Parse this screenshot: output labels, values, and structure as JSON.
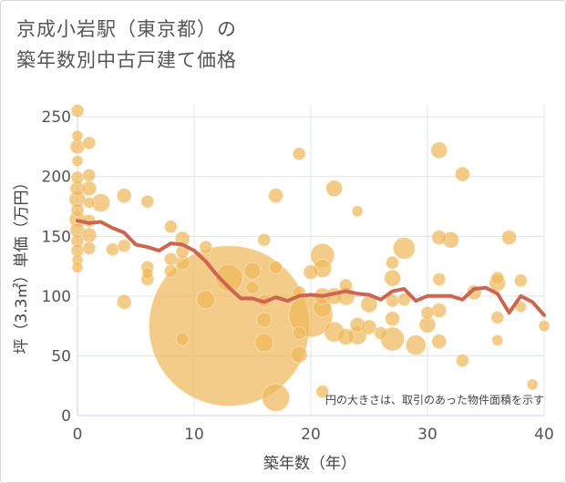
{
  "chart_data": {
    "type": "scatter",
    "title_line1": "京成小岩駅（東京都）の",
    "title_line2": "築年数別中古戸建て価格",
    "xlabel": "築年数（年）",
    "ylabel": "坪（3.3㎡）単価（万円）",
    "xlim": [
      0,
      40
    ],
    "ylim": [
      0,
      260
    ],
    "xticks": [
      0,
      10,
      20,
      30,
      40
    ],
    "yticks": [
      0,
      50,
      100,
      150,
      200,
      250
    ],
    "grid": true,
    "annotation": "円の大きさは、取引のあった物件面積を示す",
    "bubble_color": "#f0b85c",
    "line_color": "#cd6651",
    "points": [
      {
        "x": 0,
        "y": 255,
        "r": 7
      },
      {
        "x": 0,
        "y": 234,
        "r": 6
      },
      {
        "x": 0,
        "y": 225,
        "r": 8
      },
      {
        "x": 0,
        "y": 213,
        "r": 6
      },
      {
        "x": 0,
        "y": 199,
        "r": 7
      },
      {
        "x": 0,
        "y": 190,
        "r": 8
      },
      {
        "x": 0,
        "y": 181,
        "r": 9
      },
      {
        "x": 0,
        "y": 172,
        "r": 7
      },
      {
        "x": 0,
        "y": 164,
        "r": 9
      },
      {
        "x": 0,
        "y": 155,
        "r": 8
      },
      {
        "x": 0,
        "y": 146,
        "r": 7
      },
      {
        "x": 0,
        "y": 138,
        "r": 7
      },
      {
        "x": 0,
        "y": 130,
        "r": 6
      },
      {
        "x": 0,
        "y": 124,
        "r": 6
      },
      {
        "x": 1,
        "y": 228,
        "r": 7
      },
      {
        "x": 1,
        "y": 201,
        "r": 7
      },
      {
        "x": 1,
        "y": 190,
        "r": 8
      },
      {
        "x": 1,
        "y": 178,
        "r": 6
      },
      {
        "x": 1,
        "y": 163,
        "r": 7
      },
      {
        "x": 1,
        "y": 151,
        "r": 8
      },
      {
        "x": 1,
        "y": 140,
        "r": 7
      },
      {
        "x": 2,
        "y": 178,
        "r": 10
      },
      {
        "x": 3,
        "y": 139,
        "r": 7
      },
      {
        "x": 4,
        "y": 184,
        "r": 8
      },
      {
        "x": 4,
        "y": 142,
        "r": 7
      },
      {
        "x": 4,
        "y": 95,
        "r": 8
      },
      {
        "x": 6,
        "y": 179,
        "r": 7
      },
      {
        "x": 6,
        "y": 124,
        "r": 7
      },
      {
        "x": 6,
        "y": 119,
        "r": 6
      },
      {
        "x": 6,
        "y": 114,
        "r": 7
      },
      {
        "x": 8,
        "y": 158,
        "r": 7
      },
      {
        "x": 8,
        "y": 131,
        "r": 7
      },
      {
        "x": 8,
        "y": 121,
        "r": 7
      },
      {
        "x": 9,
        "y": 148,
        "r": 8
      },
      {
        "x": 9,
        "y": 137,
        "r": 7
      },
      {
        "x": 9,
        "y": 128,
        "r": 8
      },
      {
        "x": 9,
        "y": 64,
        "r": 7
      },
      {
        "x": 11,
        "y": 141,
        "r": 7
      },
      {
        "x": 11,
        "y": 97,
        "r": 10
      },
      {
        "x": 13,
        "y": 75,
        "r": 88
      },
      {
        "x": 13,
        "y": 115,
        "r": 15
      },
      {
        "x": 15,
        "y": 121,
        "r": 9
      },
      {
        "x": 15,
        "y": 107,
        "r": 7
      },
      {
        "x": 16,
        "y": 147,
        "r": 7
      },
      {
        "x": 16,
        "y": 96,
        "r": 7
      },
      {
        "x": 16,
        "y": 80,
        "r": 8
      },
      {
        "x": 16,
        "y": 61,
        "r": 10
      },
      {
        "x": 17,
        "y": 184,
        "r": 8
      },
      {
        "x": 17,
        "y": 124,
        "r": 7
      },
      {
        "x": 17,
        "y": 15,
        "r": 15
      },
      {
        "x": 19,
        "y": 219,
        "r": 7
      },
      {
        "x": 19,
        "y": 103,
        "r": 7
      },
      {
        "x": 19,
        "y": 69,
        "r": 7
      },
      {
        "x": 19,
        "y": 51,
        "r": 9
      },
      {
        "x": 20,
        "y": 120,
        "r": 8
      },
      {
        "x": 20,
        "y": 84,
        "r": 24
      },
      {
        "x": 21,
        "y": 134,
        "r": 13
      },
      {
        "x": 21,
        "y": 123,
        "r": 10
      },
      {
        "x": 21,
        "y": 100,
        "r": 9
      },
      {
        "x": 21,
        "y": 90,
        "r": 10
      },
      {
        "x": 21,
        "y": 20,
        "r": 7
      },
      {
        "x": 22,
        "y": 190,
        "r": 9
      },
      {
        "x": 22,
        "y": 100,
        "r": 9
      },
      {
        "x": 22,
        "y": 70,
        "r": 11
      },
      {
        "x": 23,
        "y": 109,
        "r": 7
      },
      {
        "x": 23,
        "y": 100,
        "r": 10
      },
      {
        "x": 23,
        "y": 66,
        "r": 9
      },
      {
        "x": 24,
        "y": 171,
        "r": 6
      },
      {
        "x": 24,
        "y": 76,
        "r": 8
      },
      {
        "x": 24,
        "y": 67,
        "r": 10
      },
      {
        "x": 25,
        "y": 93,
        "r": 9
      },
      {
        "x": 25,
        "y": 74,
        "r": 8
      },
      {
        "x": 26,
        "y": 69,
        "r": 7
      },
      {
        "x": 27,
        "y": 128,
        "r": 7
      },
      {
        "x": 27,
        "y": 115,
        "r": 9
      },
      {
        "x": 27,
        "y": 96,
        "r": 7
      },
      {
        "x": 27,
        "y": 81,
        "r": 8
      },
      {
        "x": 27,
        "y": 64,
        "r": 13
      },
      {
        "x": 28,
        "y": 140,
        "r": 12
      },
      {
        "x": 28,
        "y": 97,
        "r": 7
      },
      {
        "x": 29,
        "y": 59,
        "r": 11
      },
      {
        "x": 30,
        "y": 86,
        "r": 7
      },
      {
        "x": 30,
        "y": 76,
        "r": 9
      },
      {
        "x": 31,
        "y": 222,
        "r": 9
      },
      {
        "x": 31,
        "y": 149,
        "r": 8
      },
      {
        "x": 31,
        "y": 114,
        "r": 7
      },
      {
        "x": 31,
        "y": 88,
        "r": 8
      },
      {
        "x": 31,
        "y": 62,
        "r": 8
      },
      {
        "x": 32,
        "y": 147,
        "r": 9
      },
      {
        "x": 33,
        "y": 202,
        "r": 8
      },
      {
        "x": 33,
        "y": 46,
        "r": 7
      },
      {
        "x": 34,
        "y": 103,
        "r": 8
      },
      {
        "x": 36,
        "y": 115,
        "r": 7
      },
      {
        "x": 36,
        "y": 111,
        "r": 9
      },
      {
        "x": 36,
        "y": 82,
        "r": 7
      },
      {
        "x": 36,
        "y": 63,
        "r": 6
      },
      {
        "x": 37,
        "y": 149,
        "r": 8
      },
      {
        "x": 38,
        "y": 113,
        "r": 7
      },
      {
        "x": 38,
        "y": 91,
        "r": 6
      },
      {
        "x": 39,
        "y": 26,
        "r": 6
      },
      {
        "x": 40,
        "y": 75,
        "r": 6
      }
    ],
    "series": [
      {
        "x": [
          0,
          1,
          2,
          3,
          4,
          5,
          6,
          7,
          8,
          9,
          10,
          11,
          12,
          13,
          14,
          15,
          16,
          17,
          18,
          19,
          20,
          21,
          22,
          23,
          24,
          25,
          26,
          27,
          28,
          29,
          30,
          31,
          32,
          33,
          34,
          35,
          36,
          37,
          38,
          39,
          40
        ],
        "values": [
          163,
          161,
          162,
          157,
          153,
          143,
          141,
          138,
          144,
          143,
          138,
          129,
          117,
          107,
          98,
          98,
          95,
          99,
          96,
          100,
          101,
          100,
          102,
          104,
          102,
          101,
          97,
          104,
          106,
          96,
          100,
          100,
          100,
          97,
          106,
          107,
          102,
          86,
          100,
          95,
          84
        ]
      }
    ]
  }
}
